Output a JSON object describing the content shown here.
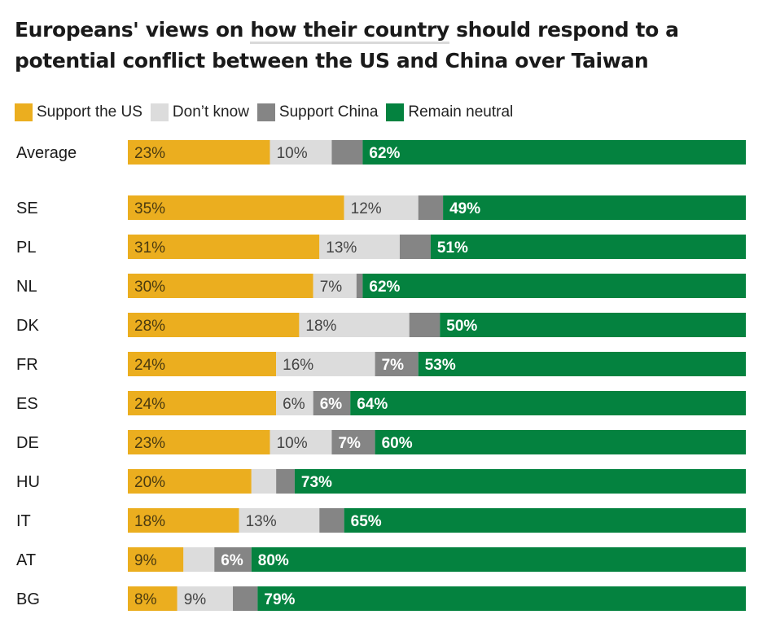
{
  "title_before": "Europeans' views on ",
  "title_highlight": "how their country",
  "title_after": " should respond to a potential conflict between the US and China over Taiwan",
  "colors": {
    "support_us": "#ebae1f",
    "dont_know": "#dcdcdc",
    "support_china": "#858585",
    "neutral": "#04823f"
  },
  "chart_data": {
    "type": "bar",
    "orientation": "horizontal",
    "stacked": true,
    "categories": [
      "Average",
      "SE",
      "PL",
      "NL",
      "DK",
      "FR",
      "ES",
      "DE",
      "HU",
      "IT",
      "AT",
      "BG"
    ],
    "series": [
      {
        "name": "Support the US",
        "values": [
          23,
          35,
          31,
          30,
          28,
          24,
          24,
          23,
          20,
          18,
          9,
          8
        ],
        "labels": [
          "23%",
          "35%",
          "31%",
          "30%",
          "28%",
          "24%",
          "24%",
          "23%",
          "20%",
          "18%",
          "9%",
          "8%"
        ]
      },
      {
        "name": "Don’t know",
        "values": [
          10,
          12,
          13,
          7,
          18,
          16,
          6,
          10,
          4,
          13,
          5,
          9
        ],
        "labels": [
          "10%",
          "12%",
          "13%",
          "7%",
          "18%",
          "16%",
          "6%",
          "10%",
          "",
          "13%",
          "",
          "9%"
        ]
      },
      {
        "name": "Support China",
        "values": [
          5,
          4,
          5,
          1,
          5,
          7,
          6,
          7,
          3,
          4,
          6,
          4
        ],
        "labels": [
          "",
          "",
          "",
          "",
          "",
          "7%",
          "6%",
          "7%",
          "",
          "",
          "6%",
          ""
        ]
      },
      {
        "name": "Remain neutral",
        "values": [
          62,
          49,
          51,
          62,
          50,
          53,
          64,
          60,
          73,
          65,
          80,
          79
        ],
        "labels": [
          "62%",
          "49%",
          "51%",
          "62%",
          "50%",
          "53%",
          "64%",
          "60%",
          "73%",
          "65%",
          "80%",
          "79%"
        ]
      }
    ],
    "legend_position": "top-left",
    "grid": false
  }
}
